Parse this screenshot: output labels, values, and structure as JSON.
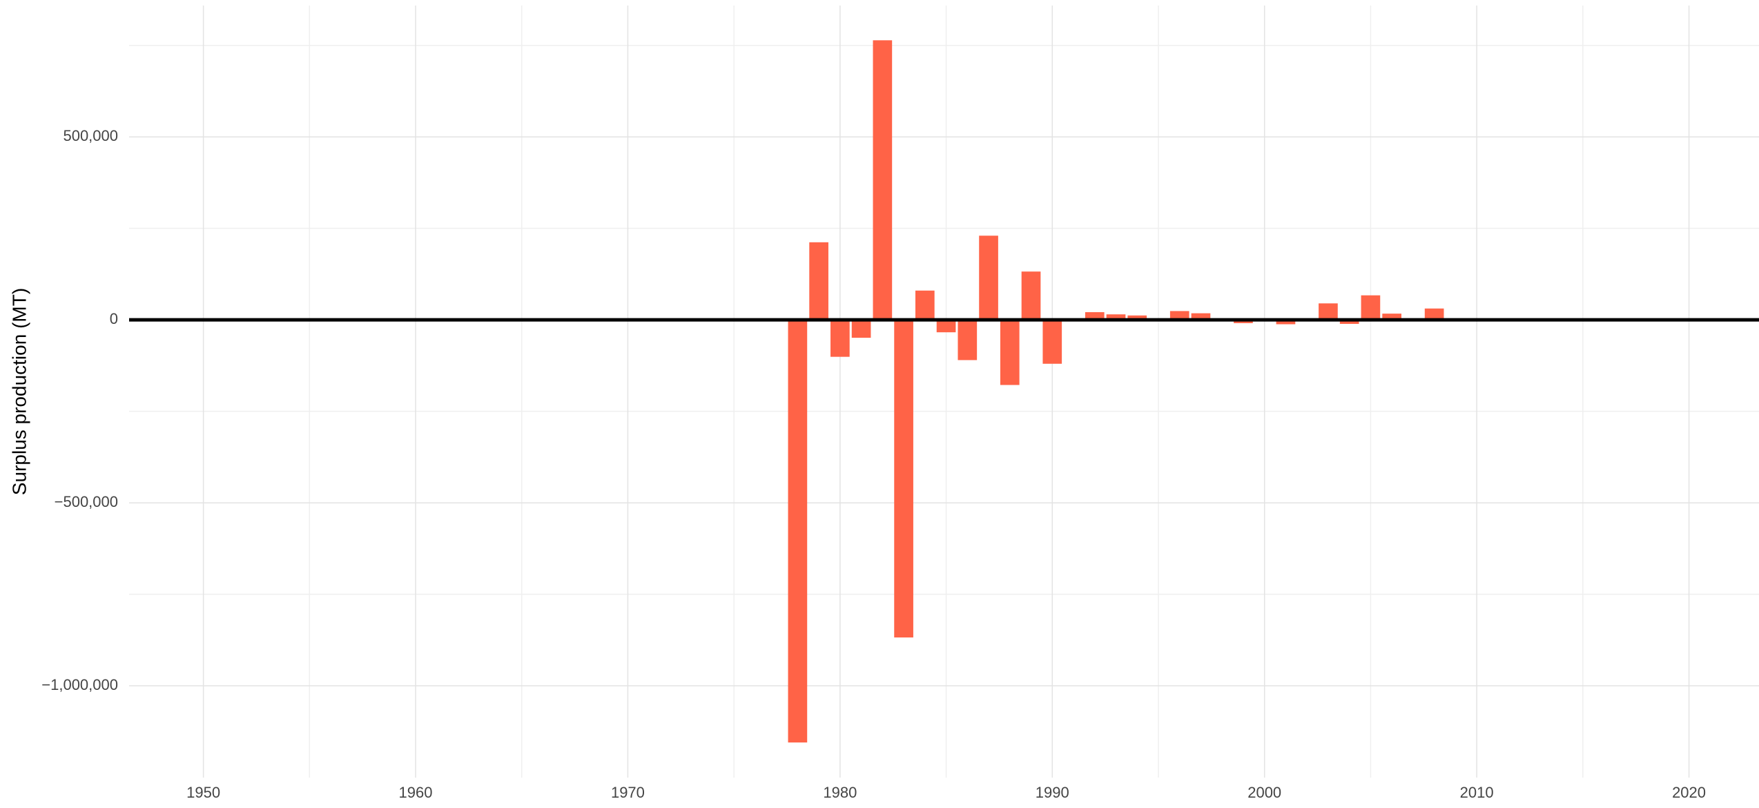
{
  "chart_data": {
    "type": "bar",
    "y_label": "Surplus production (MT)",
    "x": [
      1978,
      1979,
      1980,
      1981,
      1982,
      1983,
      1984,
      1985,
      1986,
      1987,
      1988,
      1989,
      1990,
      1991,
      1992,
      1993,
      1994,
      1995,
      1996,
      1997,
      1998,
      1999,
      2000,
      2001,
      2002,
      2003,
      2004,
      2005,
      2006,
      2007,
      2008
    ],
    "values": [
      -1155000,
      212000,
      -101000,
      -49000,
      764000,
      -868000,
      80000,
      -34000,
      -110000,
      230000,
      -178000,
      132000,
      -120000,
      0,
      21000,
      15000,
      12000,
      0,
      24000,
      18000,
      2000,
      -9000,
      2000,
      -12000,
      -3000,
      45000,
      -11000,
      67000,
      17000,
      0,
      31000
    ],
    "color": "#ff6347",
    "bar_width": 0.9,
    "xlim": [
      1946.5,
      2023.3
    ],
    "xticks": [
      1950,
      1960,
      1970,
      1980,
      1990,
      2000,
      2010,
      2020
    ],
    "x_minor_ticks": [
      1955,
      1965,
      1975,
      1985,
      1995,
      2005,
      2015
    ],
    "ylim": [
      -1251000,
      859000
    ],
    "yticks": [
      {
        "value": -1000000,
        "label": "−1,000,000"
      },
      {
        "value": -500000,
        "label": "−500,000"
      },
      0,
      {
        "value": 500000,
        "label": "500,000"
      }
    ],
    "y_minor_ticks": [
      -750000,
      -250000,
      250000,
      750000
    ],
    "hline": 0,
    "grid": true
  }
}
